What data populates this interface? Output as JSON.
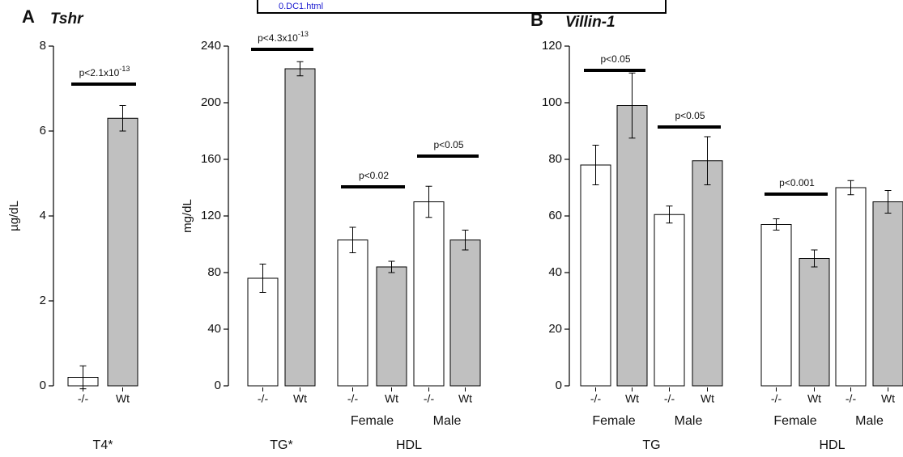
{
  "header": {
    "link": "0.DC1.html"
  },
  "chart_data": [
    {
      "type": "bar",
      "panel": "A",
      "title": "Tshr",
      "ylabel": "µg/dL",
      "ylim": [
        0,
        8
      ],
      "yticks": [
        0,
        2,
        4,
        6,
        8
      ],
      "colors": [
        "#ffffff",
        "#c0c0c0"
      ],
      "groups": [
        {
          "label": "T4*",
          "subgroups": [
            {
              "categories": [
                "-/-",
                "Wt"
              ],
              "values": [
                0.2,
                6.3
              ],
              "errors": [
                0.27,
                0.3
              ],
              "p": {
                "text": "p<2.1x10",
                "exp": "-13"
              }
            }
          ]
        }
      ]
    },
    {
      "type": "bar",
      "ylabel": "mg/dL",
      "ylim": [
        0,
        240
      ],
      "yticks": [
        0,
        40,
        80,
        120,
        160,
        200,
        240
      ],
      "colors": [
        "#ffffff",
        "#c0c0c0"
      ],
      "groups": [
        {
          "label": "TG*",
          "subgroups": [
            {
              "categories": [
                "-/-",
                "Wt"
              ],
              "values": [
                76,
                224
              ],
              "errors": [
                10,
                5
              ],
              "p": {
                "text": "p<4.3x10",
                "exp": "-13"
              }
            }
          ]
        },
        {
          "label": "HDL",
          "subgroups": [
            {
              "label": "Female",
              "categories": [
                "-/-",
                "Wt"
              ],
              "values": [
                103,
                84
              ],
              "errors": [
                9,
                4
              ],
              "p": {
                "text": "p<0.02"
              }
            },
            {
              "label": "Male",
              "categories": [
                "-/-",
                "Wt"
              ],
              "values": [
                130,
                103
              ],
              "errors": [
                11,
                7
              ],
              "p": {
                "text": "p<0.05"
              }
            }
          ]
        }
      ]
    },
    {
      "type": "bar",
      "panel": "B",
      "title": "Villin-1",
      "ylim": [
        0,
        120
      ],
      "yticks": [
        0,
        20,
        40,
        60,
        80,
        100,
        120
      ],
      "colors": [
        "#ffffff",
        "#c0c0c0"
      ],
      "groups": [
        {
          "label": "TG",
          "subgroups": [
            {
              "label": "Female",
              "categories": [
                "-/-",
                "Wt"
              ],
              "values": [
                78,
                99
              ],
              "errors": [
                7,
                11.5
              ],
              "p": {
                "text": "p<0.05"
              }
            },
            {
              "label": "Male",
              "categories": [
                "-/-",
                "Wt"
              ],
              "values": [
                60.5,
                79.5
              ],
              "errors": [
                3,
                8.5
              ],
              "p": {
                "text": "p<0.05"
              }
            }
          ]
        },
        {
          "label": "HDL",
          "subgroups": [
            {
              "label": "Female",
              "categories": [
                "-/-",
                "Wt"
              ],
              "values": [
                57,
                45
              ],
              "errors": [
                2,
                3
              ],
              "p": {
                "text": "p<0.001"
              }
            },
            {
              "label": "Male",
              "categories": [
                "-/-",
                "Wt"
              ],
              "values": [
                70,
                65
              ],
              "errors": [
                2.5,
                4
              ]
            }
          ]
        }
      ]
    }
  ]
}
